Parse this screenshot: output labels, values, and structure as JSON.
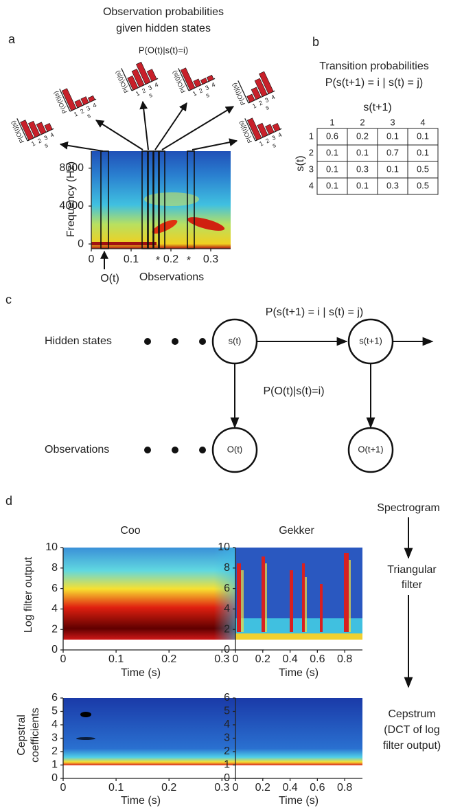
{
  "panel_a": {
    "label": "a",
    "title": [
      "Observation probabilities",
      "given hidden states"
    ],
    "inset_title": "P(O(t)|s(t)=i)",
    "inset_ylabel": "P(O(t)|s)",
    "inset_categories": [
      1,
      2,
      3,
      4
    ],
    "inset_xlabel": "s",
    "insets": [
      [
        0.9,
        0.7,
        0.5,
        0.3
      ],
      [
        1,
        0.3,
        0.3,
        0.2
      ],
      [
        0.6,
        0.8,
        1,
        0.5
      ],
      [
        1,
        0.3,
        0.2,
        0.2
      ],
      [
        0.3,
        0.5,
        0.8,
        1
      ],
      [
        1,
        0.6,
        0.4,
        0.3
      ]
    ],
    "ylabel": "Frequency (Hz)",
    "ylim": [
      -500,
      9800
    ],
    "yticks": [
      0,
      4000,
      8000
    ],
    "xlim": [
      0,
      0.35
    ],
    "xticks": [
      0,
      0.1,
      0.2,
      0.3
    ],
    "markers": [
      "*",
      "*"
    ],
    "pointer": "O(t)",
    "xlabel": "Observations"
  },
  "panel_b": {
    "label": "b",
    "title": "Transition probabilities",
    "formula": "P(s(t+1) = i | s(t) = j)",
    "col_label": "s(t+1)",
    "row_label": "s(t)",
    "col_headers": [
      1,
      2,
      3,
      4
    ],
    "row_headers": [
      1,
      2,
      3,
      4
    ],
    "matrix": [
      [
        0.6,
        0.2,
        0.1,
        0.1
      ],
      [
        0.1,
        0.1,
        0.7,
        0.1
      ],
      [
        0.1,
        0.3,
        0.1,
        0.5
      ],
      [
        0.1,
        0.1,
        0.3,
        0.5
      ]
    ]
  },
  "panel_c": {
    "label": "c",
    "row_labels": [
      "Hidden states",
      "Observations"
    ],
    "nodes": [
      "s(t)",
      "s(t+1)",
      "O(t)",
      "O(t+1)"
    ],
    "transition": "P(s(t+1) = i | s(t) = j)",
    "emission": "P(O(t)|s(t)=i)"
  },
  "panel_d": {
    "label": "d",
    "xlabel": "Time (s)",
    "columns": [
      {
        "title": "Coo",
        "xlim": [
          0,
          0.38
        ],
        "xticks": [
          0,
          0.1,
          0.2,
          0.3
        ]
      },
      {
        "title": "Gekker",
        "xlim": [
          0,
          0.93
        ],
        "xticks": [
          0,
          0.2,
          0.4,
          0.6,
          0.8
        ]
      }
    ],
    "rows": [
      {
        "ylabel": [
          "Log filter output"
        ],
        "ylim": [
          0,
          10
        ],
        "yticks": [
          0,
          2,
          4,
          6,
          8,
          10
        ]
      },
      {
        "ylabel": [
          "Cepstral",
          "coefficients"
        ],
        "ylim": [
          0,
          6
        ],
        "yticks": [
          0,
          1,
          2,
          3,
          4,
          5,
          6
        ]
      }
    ],
    "pipeline": [
      [
        "Spectrogram"
      ],
      [
        "Triangular",
        "filter"
      ],
      [
        "Cepstrum",
        "(DCT of log",
        "filter output)"
      ]
    ]
  }
}
